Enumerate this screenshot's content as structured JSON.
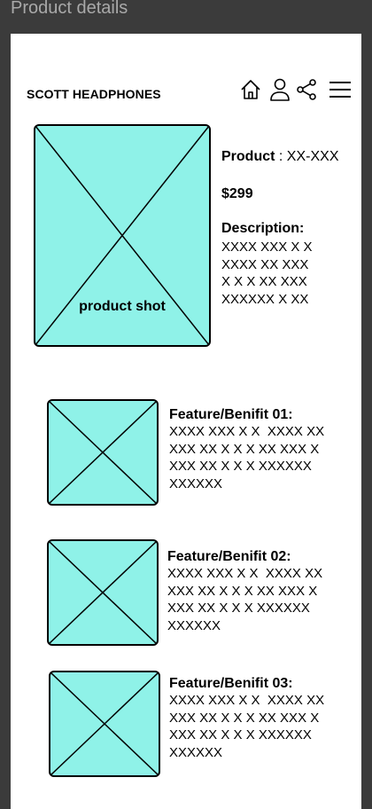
{
  "window": {
    "title": "Product details"
  },
  "header": {
    "brand": "SCOTT HEADPHONES",
    "icons": [
      "home-icon",
      "user-icon",
      "share-icon",
      "menu-icon"
    ]
  },
  "product": {
    "image_label": "product shot",
    "label": "Product",
    "separator": " : ",
    "code": "XX-XXX",
    "price": "$299",
    "description_label": "Description:",
    "description_lines": [
      "XXXX XXX X X",
      "XXXX XX XXX",
      "X X X XX XXX",
      "XXXXXX X XX"
    ]
  },
  "features": [
    {
      "label": "Feature/Benifit 01:",
      "lines": [
        "XXXX XXX X X  XXXX XX",
        "XXX XX X X X XX XXX X",
        "XXX XX X X X XXXXXX",
        "XXXXXX"
      ]
    },
    {
      "label": "Feature/Benifit 02:",
      "lines": [
        "XXXX XXX X X  XXXX XX",
        "XXX XX X X X XX XXX X",
        "XXX XX X X X XXXXXX",
        "XXXXXX"
      ]
    },
    {
      "label": "Feature/Benifit 03:",
      "lines": [
        "XXXX XXX X X  XXXX XX",
        "XXX XX X X X XX XXX X",
        "XXX XX X X X XXXXXX",
        "XXXXXX"
      ]
    }
  ],
  "colors": {
    "placeholder": "#8ff2e8",
    "frame_bg": "#3b3b3b",
    "page_bg": "#ffffff"
  }
}
